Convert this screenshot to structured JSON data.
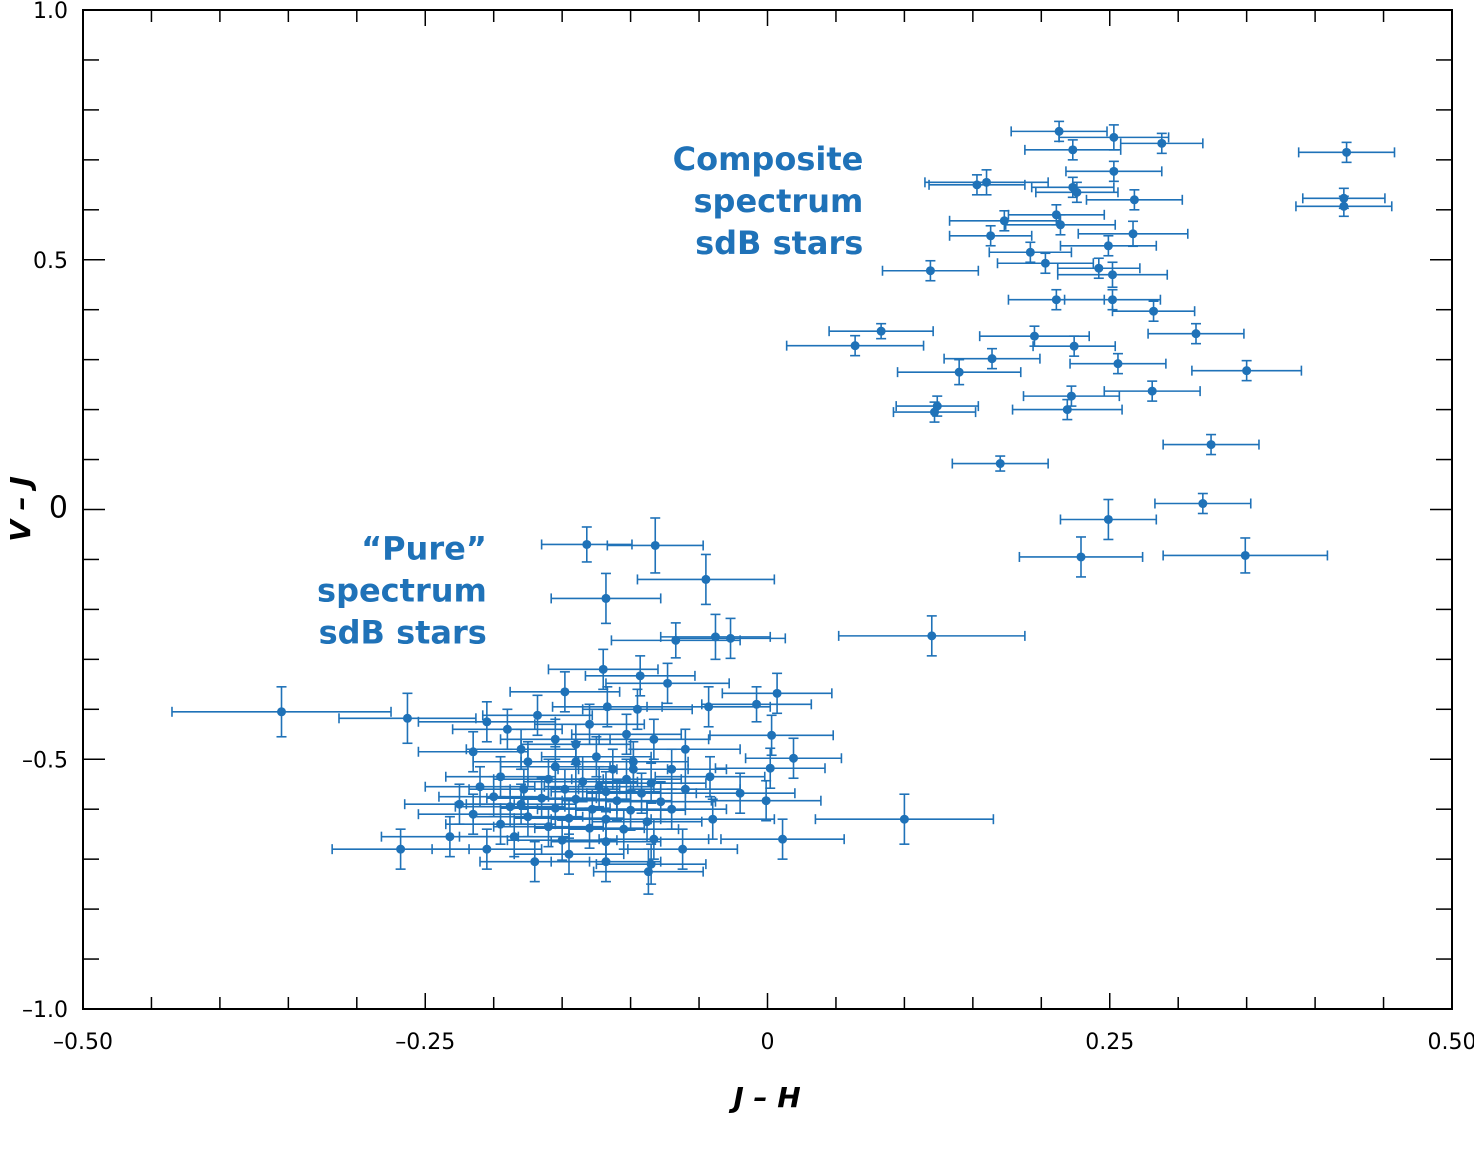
{
  "chart_data": {
    "type": "scatter",
    "xlabel": "J – H",
    "ylabel": "V – J",
    "xlim": [
      -0.5,
      0.5
    ],
    "ylim": [
      -1.0,
      1.0
    ],
    "x_ticks": [
      -0.5,
      -0.25,
      0,
      0.25,
      0.5
    ],
    "x_tick_labels": [
      "–0.50",
      "–0.25",
      "0",
      "0.25",
      "0.50"
    ],
    "y_ticks": [
      1.0,
      0.5,
      0,
      -0.5,
      -1.0
    ],
    "y_tick_labels": [
      "1.0",
      "0.5",
      "0",
      "–0.5",
      "–1.0"
    ],
    "grid": false,
    "marker_color": "#1f72b8",
    "annotations": [
      {
        "group": "composite",
        "lines": [
          "Composite",
          "spectrum",
          "sdB stars"
        ],
        "x": 0.07,
        "y": 0.68
      },
      {
        "group": "pure",
        "lines": [
          "“Pure”",
          "spectrum",
          "sdB stars"
        ],
        "x": -0.205,
        "y": -0.1
      }
    ],
    "series": [
      {
        "points": [
          [
            0.213,
            0.757,
            0.035,
            0.02
          ],
          [
            0.253,
            0.745,
            0.04,
            0.025
          ],
          [
            0.288,
            0.733,
            0.03,
            0.02
          ],
          [
            0.223,
            0.72,
            0.035,
            0.02
          ],
          [
            0.423,
            0.715,
            0.035,
            0.02
          ],
          [
            0.253,
            0.677,
            0.035,
            0.02
          ],
          [
            0.153,
            0.65,
            0.035,
            0.02
          ],
          [
            0.16,
            0.655,
            0.045,
            0.025
          ],
          [
            0.223,
            0.645,
            0.03,
            0.02
          ],
          [
            0.226,
            0.635,
            0.03,
            0.02
          ],
          [
            0.268,
            0.62,
            0.035,
            0.02
          ],
          [
            0.421,
            0.623,
            0.03,
            0.02
          ],
          [
            0.421,
            0.607,
            0.035,
            0.02
          ],
          [
            0.211,
            0.59,
            0.035,
            0.02
          ],
          [
            0.173,
            0.578,
            0.04,
            0.02
          ],
          [
            0.214,
            0.57,
            0.04,
            0.02
          ],
          [
            0.163,
            0.548,
            0.03,
            0.02
          ],
          [
            0.267,
            0.552,
            0.04,
            0.025
          ],
          [
            0.249,
            0.528,
            0.035,
            0.02
          ],
          [
            0.192,
            0.515,
            0.03,
            0.02
          ],
          [
            0.203,
            0.493,
            0.035,
            0.02
          ],
          [
            0.242,
            0.483,
            0.03,
            0.02
          ],
          [
            0.119,
            0.478,
            0.035,
            0.02
          ],
          [
            0.252,
            0.47,
            0.04,
            0.025
          ],
          [
            0.211,
            0.42,
            0.035,
            0.02
          ],
          [
            0.252,
            0.42,
            0.035,
            0.02
          ],
          [
            0.282,
            0.397,
            0.03,
            0.02
          ],
          [
            0.083,
            0.357,
            0.038,
            0.015
          ],
          [
            0.195,
            0.347,
            0.04,
            0.02
          ],
          [
            0.313,
            0.352,
            0.035,
            0.02
          ],
          [
            0.064,
            0.328,
            0.05,
            0.02
          ],
          [
            0.224,
            0.327,
            0.03,
            0.02
          ],
          [
            0.164,
            0.302,
            0.035,
            0.02
          ],
          [
            0.256,
            0.292,
            0.035,
            0.02
          ],
          [
            0.14,
            0.275,
            0.045,
            0.025
          ],
          [
            0.35,
            0.278,
            0.04,
            0.02
          ],
          [
            0.281,
            0.237,
            0.035,
            0.02
          ],
          [
            0.124,
            0.207,
            0.03,
            0.02
          ],
          [
            0.222,
            0.227,
            0.035,
            0.02
          ],
          [
            0.122,
            0.195,
            0.03,
            0.02
          ],
          [
            0.219,
            0.2,
            0.04,
            0.02
          ],
          [
            0.324,
            0.13,
            0.035,
            0.02
          ],
          [
            0.17,
            0.092,
            0.035,
            0.015
          ],
          [
            0.318,
            0.012,
            0.035,
            0.02
          ],
          [
            0.249,
            -0.02,
            0.035,
            0.04
          ],
          [
            0.229,
            -0.095,
            0.045,
            0.04
          ],
          [
            0.349,
            -0.092,
            0.06,
            0.035
          ],
          [
            0.12,
            -0.253,
            0.068,
            0.04
          ],
          [
            -0.132,
            -0.07,
            0.033,
            0.035
          ],
          [
            -0.082,
            -0.072,
            0.035,
            0.055
          ],
          [
            -0.045,
            -0.14,
            0.05,
            0.05
          ],
          [
            -0.118,
            -0.178,
            0.04,
            0.05
          ],
          [
            -0.067,
            -0.262,
            0.047,
            0.035
          ],
          [
            -0.038,
            -0.255,
            0.04,
            0.045
          ],
          [
            -0.027,
            -0.258,
            0.04,
            0.04
          ],
          [
            -0.355,
            -0.405,
            0.08,
            0.05
          ],
          [
            -0.263,
            -0.418,
            0.05,
            0.05
          ],
          [
            -0.205,
            -0.425,
            0.05,
            0.04
          ],
          [
            -0.215,
            -0.485,
            0.04,
            0.04
          ],
          [
            -0.18,
            -0.48,
            0.04,
            0.04
          ],
          [
            -0.155,
            -0.46,
            0.04,
            0.04
          ],
          [
            -0.12,
            -0.32,
            0.04,
            0.04
          ],
          [
            -0.093,
            -0.333,
            0.04,
            0.04
          ],
          [
            -0.148,
            -0.365,
            0.04,
            0.04
          ],
          [
            -0.073,
            -0.348,
            0.045,
            0.04
          ],
          [
            -0.043,
            -0.395,
            0.045,
            0.04
          ],
          [
            -0.008,
            -0.39,
            0.04,
            0.035
          ],
          [
            0.007,
            -0.368,
            0.04,
            0.04
          ],
          [
            0.003,
            -0.452,
            0.045,
            0.04
          ],
          [
            0.002,
            -0.518,
            0.04,
            0.04
          ],
          [
            0.019,
            -0.498,
            0.035,
            0.04
          ],
          [
            -0.042,
            -0.535,
            0.04,
            0.04
          ],
          [
            -0.02,
            -0.568,
            0.04,
            0.04
          ],
          [
            -0.001,
            -0.583,
            0.04,
            0.04
          ],
          [
            -0.04,
            -0.62,
            0.045,
            0.04
          ],
          [
            -0.062,
            -0.68,
            0.04,
            0.04
          ],
          [
            0.011,
            -0.66,
            0.045,
            0.04
          ],
          [
            0.1,
            -0.62,
            0.065,
            0.05
          ],
          [
            -0.117,
            -0.395,
            0.04,
            0.04
          ],
          [
            -0.095,
            -0.4,
            0.04,
            0.04
          ],
          [
            -0.168,
            -0.412,
            0.04,
            0.04
          ],
          [
            -0.13,
            -0.43,
            0.04,
            0.04
          ],
          [
            -0.19,
            -0.44,
            0.04,
            0.04
          ],
          [
            -0.103,
            -0.45,
            0.04,
            0.04
          ],
          [
            -0.083,
            -0.46,
            0.04,
            0.04
          ],
          [
            -0.14,
            -0.47,
            0.04,
            0.04
          ],
          [
            -0.175,
            -0.505,
            0.04,
            0.04
          ],
          [
            -0.125,
            -0.495,
            0.04,
            0.04
          ],
          [
            -0.098,
            -0.505,
            0.04,
            0.04
          ],
          [
            -0.155,
            -0.515,
            0.04,
            0.04
          ],
          [
            -0.113,
            -0.52,
            0.04,
            0.04
          ],
          [
            -0.07,
            -0.52,
            0.04,
            0.04
          ],
          [
            -0.195,
            -0.535,
            0.04,
            0.04
          ],
          [
            -0.16,
            -0.54,
            0.04,
            0.04
          ],
          [
            -0.135,
            -0.545,
            0.04,
            0.04
          ],
          [
            -0.103,
            -0.54,
            0.04,
            0.04
          ],
          [
            -0.085,
            -0.548,
            0.04,
            0.04
          ],
          [
            -0.21,
            -0.555,
            0.04,
            0.04
          ],
          [
            -0.178,
            -0.56,
            0.04,
            0.04
          ],
          [
            -0.148,
            -0.56,
            0.04,
            0.04
          ],
          [
            -0.118,
            -0.565,
            0.04,
            0.04
          ],
          [
            -0.092,
            -0.568,
            0.04,
            0.04
          ],
          [
            -0.06,
            -0.56,
            0.04,
            0.04
          ],
          [
            -0.2,
            -0.575,
            0.04,
            0.04
          ],
          [
            -0.165,
            -0.578,
            0.04,
            0.04
          ],
          [
            -0.14,
            -0.58,
            0.04,
            0.04
          ],
          [
            -0.11,
            -0.583,
            0.04,
            0.04
          ],
          [
            -0.078,
            -0.585,
            0.04,
            0.04
          ],
          [
            -0.225,
            -0.59,
            0.04,
            0.04
          ],
          [
            -0.188,
            -0.595,
            0.04,
            0.04
          ],
          [
            -0.155,
            -0.598,
            0.04,
            0.04
          ],
          [
            -0.128,
            -0.6,
            0.04,
            0.04
          ],
          [
            -0.1,
            -0.602,
            0.04,
            0.04
          ],
          [
            -0.07,
            -0.6,
            0.04,
            0.04
          ],
          [
            -0.215,
            -0.61,
            0.04,
            0.04
          ],
          [
            -0.175,
            -0.615,
            0.04,
            0.04
          ],
          [
            -0.145,
            -0.618,
            0.04,
            0.04
          ],
          [
            -0.118,
            -0.62,
            0.04,
            0.04
          ],
          [
            -0.088,
            -0.625,
            0.04,
            0.04
          ],
          [
            -0.195,
            -0.63,
            0.04,
            0.04
          ],
          [
            -0.16,
            -0.635,
            0.04,
            0.04
          ],
          [
            -0.13,
            -0.638,
            0.04,
            0.04
          ],
          [
            -0.105,
            -0.64,
            0.04,
            0.04
          ],
          [
            -0.232,
            -0.655,
            0.05,
            0.04
          ],
          [
            -0.185,
            -0.655,
            0.04,
            0.04
          ],
          [
            -0.15,
            -0.662,
            0.04,
            0.04
          ],
          [
            -0.118,
            -0.665,
            0.04,
            0.04
          ],
          [
            -0.083,
            -0.66,
            0.04,
            0.04
          ],
          [
            -0.268,
            -0.68,
            0.05,
            0.04
          ],
          [
            -0.205,
            -0.68,
            0.04,
            0.04
          ],
          [
            -0.145,
            -0.69,
            0.04,
            0.04
          ],
          [
            -0.118,
            -0.705,
            0.04,
            0.04
          ],
          [
            -0.17,
            -0.705,
            0.04,
            0.04
          ],
          [
            -0.085,
            -0.71,
            0.04,
            0.04
          ],
          [
            -0.087,
            -0.725,
            0.04,
            0.045
          ],
          [
            -0.18,
            -0.59,
            0.04,
            0.04
          ],
          [
            -0.123,
            -0.555,
            0.04,
            0.04
          ],
          [
            -0.098,
            -0.52,
            0.04,
            0.04
          ],
          [
            -0.14,
            -0.505,
            0.04,
            0.04
          ],
          [
            -0.06,
            -0.48,
            0.04,
            0.04
          ]
        ]
      }
    ]
  }
}
